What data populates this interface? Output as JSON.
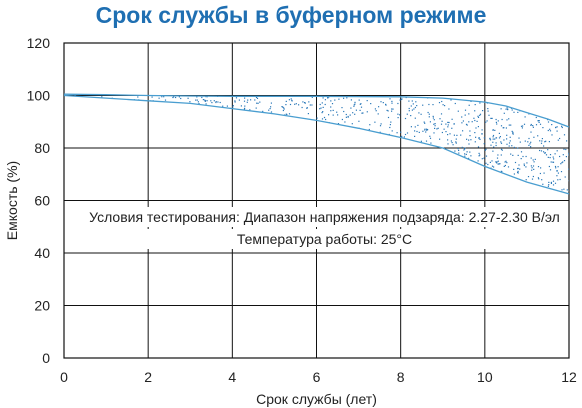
{
  "chart_data": {
    "type": "area",
    "title": "Срок службы в буферном режиме",
    "xlabel": "Срок службы (лет)",
    "ylabel": "Емкость (%)",
    "xlim": [
      0,
      12
    ],
    "ylim": [
      0,
      120
    ],
    "xticks": [
      0,
      2,
      4,
      6,
      8,
      10,
      12
    ],
    "yticks": [
      0,
      20,
      40,
      60,
      80,
      100,
      120
    ],
    "grid": true,
    "band_color": "#4a9ed0",
    "stipple_color": "#2a78b8",
    "series": [
      {
        "x": [
          0,
          1,
          2,
          3,
          4,
          5,
          6,
          7,
          8,
          9,
          10,
          10.5,
          11,
          11.5,
          12
        ],
        "values": [
          100.5,
          100.3,
          100,
          99.8,
          99.7,
          99.7,
          99.7,
          99.6,
          99.5,
          99,
          97.5,
          96,
          93.5,
          91,
          88
        ]
      },
      {
        "x": [
          0,
          1,
          2,
          3,
          4,
          5,
          6,
          7,
          8,
          9,
          10,
          11,
          12
        ],
        "values": [
          100,
          99,
          98,
          97,
          95,
          93,
          90.5,
          87.5,
          84,
          80,
          73,
          67,
          62.5
        ]
      }
    ],
    "annotations": [
      "Условия тестирования: Диапазон напряжения подзаряда: 2.27-2.30 В/эл",
      "Температура работы: 25°C"
    ]
  }
}
